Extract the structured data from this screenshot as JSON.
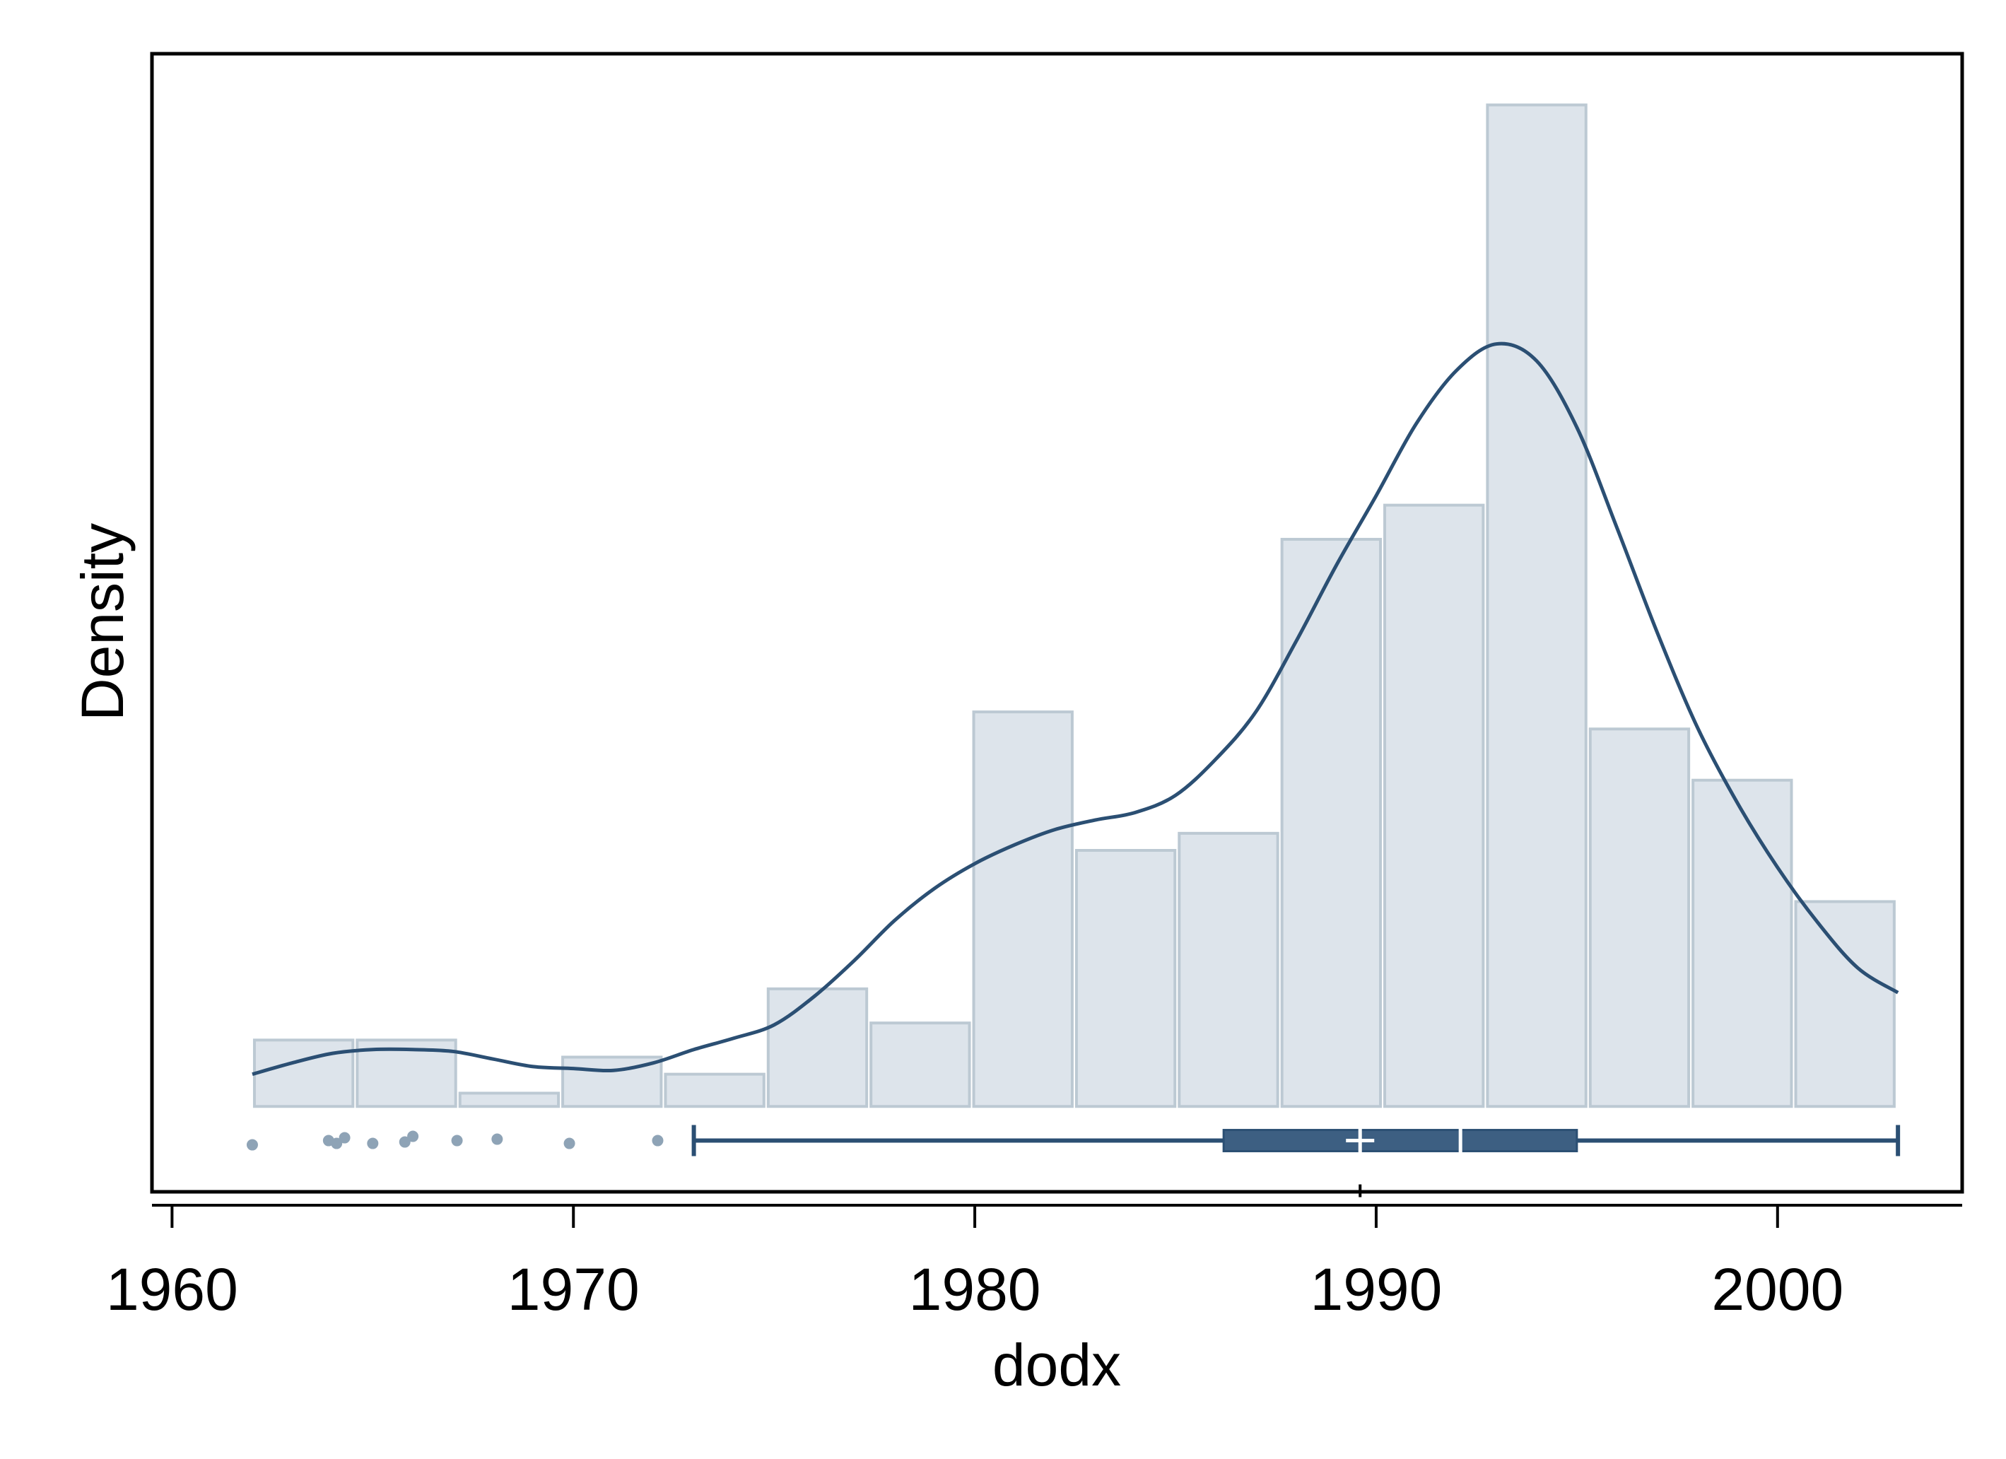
{
  "chart_data": {
    "type": "bar",
    "xlabel": "dodx",
    "ylabel": "Density",
    "xlim": [
      1959.5,
      2004.6
    ],
    "ylim": [
      -0.0045,
      0.0555
    ],
    "x_ticks": [
      1960,
      1970,
      1980,
      1990,
      2000
    ],
    "x_tick_labels": [
      "1960",
      "1970",
      "1980",
      "1990",
      "2000"
    ],
    "histogram": {
      "bin_edges": [
        1962.0,
        1964.56,
        1967.12,
        1969.68,
        1972.24,
        1974.8,
        1977.36,
        1979.92,
        1982.48,
        1985.04,
        1987.6,
        1990.16,
        1992.72,
        1995.28,
        1997.84,
        2000.4,
        2002.96
      ],
      "values": [
        0.0035,
        0.0035,
        0.0007,
        0.0026,
        0.0017,
        0.0062,
        0.0044,
        0.0208,
        0.0135,
        0.0144,
        0.0299,
        0.0317,
        0.0528,
        0.0199,
        0.0172,
        0.0108
      ]
    },
    "density_curve": {
      "x": [
        1962.0,
        1963.0,
        1964.0,
        1965.0,
        1966.0,
        1967.0,
        1968.0,
        1969.0,
        1970.0,
        1971.0,
        1972.0,
        1973.0,
        1974.0,
        1975.0,
        1976.0,
        1977.0,
        1978.0,
        1979.0,
        1980.0,
        1981.0,
        1982.0,
        1983.0,
        1984.0,
        1985.0,
        1986.0,
        1987.0,
        1988.0,
        1989.0,
        1990.0,
        1991.0,
        1992.0,
        1993.0,
        1994.0,
        1995.0,
        1996.0,
        1997.0,
        1998.0,
        1999.0,
        2000.0,
        2001.0,
        2002.0,
        2003.0
      ],
      "y": [
        0.0017,
        0.0023,
        0.0028,
        0.003,
        0.003,
        0.0029,
        0.0025,
        0.0021,
        0.002,
        0.0019,
        0.0023,
        0.003,
        0.0036,
        0.0043,
        0.0058,
        0.0077,
        0.0098,
        0.0115,
        0.0128,
        0.0138,
        0.0146,
        0.0151,
        0.0155,
        0.0164,
        0.0183,
        0.0208,
        0.0245,
        0.0285,
        0.0322,
        0.036,
        0.0388,
        0.0402,
        0.0393,
        0.0358,
        0.0305,
        0.025,
        0.02,
        0.016,
        0.0126,
        0.0097,
        0.0073,
        0.006
      ]
    },
    "boxplot": {
      "whisker_low": 1973.0,
      "q1": 1986.2,
      "median": 1992.1,
      "q3": 1995.0,
      "whisker_high": 2003.0,
      "mean": 1989.6
    },
    "outliers": [
      1962.0,
      1963.9,
      1964.1,
      1964.3,
      1965.0,
      1965.8,
      1966.0,
      1967.1,
      1968.1,
      1969.9,
      1972.1
    ],
    "colors": {
      "bar_fill": "#dde4eb",
      "bar_edge": "#bcc9d3",
      "line": "#2b4f73",
      "box_fill": "#3d5f82",
      "outlier": "#8ea3b6"
    }
  }
}
